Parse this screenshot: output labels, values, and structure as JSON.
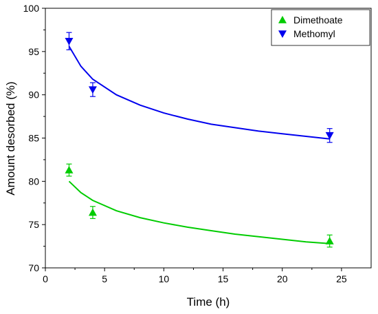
{
  "chart_data": {
    "type": "scatter",
    "title": "",
    "xlabel": "Time (h)",
    "ylabel": "Amount desorbed (%)",
    "xlim": [
      0,
      27.5
    ],
    "ylim": [
      70,
      100
    ],
    "xticks": [
      0,
      5,
      10,
      15,
      20,
      25
    ],
    "yticks": [
      70,
      75,
      80,
      85,
      90,
      95,
      100
    ],
    "grid": false,
    "legend_position": "top-right",
    "series": [
      {
        "name": "Dimethoate",
        "marker": "triangle-up",
        "color": "#00cc00",
        "points": [
          {
            "x": 2,
            "y": 81.3,
            "err": 0.7
          },
          {
            "x": 4,
            "y": 76.4,
            "err": 0.7
          },
          {
            "x": 24,
            "y": 73.1,
            "err": 0.7
          }
        ],
        "fit": {
          "x": [
            2,
            3,
            4,
            6,
            8,
            10,
            12,
            14,
            16,
            18,
            20,
            22,
            24
          ],
          "y": [
            80.0,
            78.7,
            77.8,
            76.6,
            75.8,
            75.2,
            74.7,
            74.3,
            73.9,
            73.6,
            73.3,
            73.0,
            72.8
          ]
        }
      },
      {
        "name": "Methomyl",
        "marker": "triangle-down",
        "color": "#0000ee",
        "points": [
          {
            "x": 2,
            "y": 96.2,
            "err": 1.0
          },
          {
            "x": 4,
            "y": 90.6,
            "err": 0.8
          },
          {
            "x": 24,
            "y": 85.3,
            "err": 0.8
          }
        ],
        "fit": {
          "x": [
            2,
            3,
            4,
            6,
            8,
            10,
            12,
            14,
            16,
            18,
            20,
            22,
            24
          ],
          "y": [
            95.6,
            93.3,
            91.8,
            90.0,
            88.8,
            87.9,
            87.2,
            86.6,
            86.2,
            85.8,
            85.5,
            85.2,
            84.9
          ]
        }
      }
    ]
  }
}
